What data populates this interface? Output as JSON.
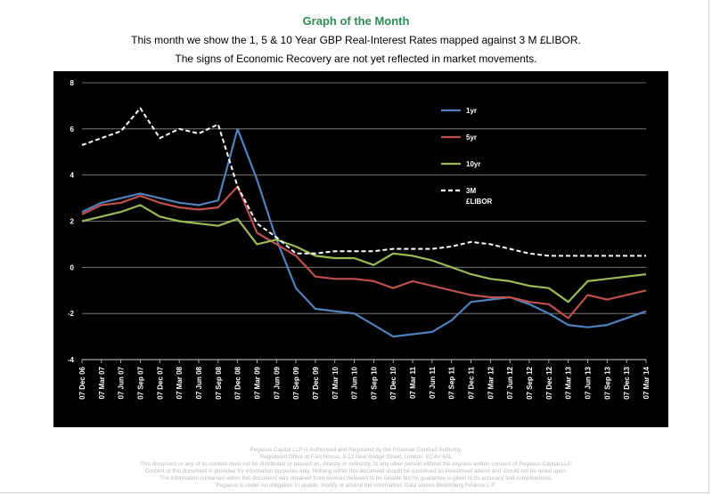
{
  "header": {
    "title": "Graph of the Month",
    "subtitle_1": "This month we show the 1, 5 & 10 Year GBP Real-Interest Rates mapped against 3 M £LIBOR.",
    "subtitle_2": "The signs of Economic Recovery are not yet reflected in market movements."
  },
  "footer": {
    "lines": [
      "Pegasus Capital LLP is Authorised and Regulated by the Financial Conduct Authority.",
      "Registered Office at Fast House, 9-12 New Bridge Street, London, EC4V 6AL",
      "This document or any of its content must not be distributed or passed on, directly or indirectly, to any other person without the express written consent of Pegasus Capital LLP.",
      "Content of this document is provided for information purposes only. Nothing within this document should be construed as investment advice and should not be relied upon.",
      "The information contained within this document was obtained from sources believed to be reliable but no guarantee is given to its accuracy and completeness.",
      "Pegasus is under no obligation to update, modify or amend the information. Data source Bloomberg Finance L.P."
    ]
  },
  "colors": {
    "background": "#000000",
    "grid": "#8c8c8c",
    "axis_text": "#ffffff",
    "s1yr": "#4f81bd",
    "s5yr": "#c0504d",
    "s10yr": "#9bbb59",
    "libor": "#ffffff"
  },
  "chart_data": {
    "type": "line",
    "title": "",
    "xlabel": "",
    "ylabel": "",
    "ylim": [
      -4,
      8
    ],
    "yticks": [
      -4,
      -2,
      0,
      2,
      4,
      6,
      8
    ],
    "grid": true,
    "legend_placement": "top-right",
    "x": [
      "07 Dec 06",
      "07 Mar 07",
      "07 Jun 07",
      "07 Sep 07",
      "07 Dec 07",
      "07 Mar 08",
      "07 Jun 08",
      "07 Sep 08",
      "07 Dec 08",
      "07 Mar 09",
      "07 Jun 09",
      "07 Sep 09",
      "07 Dec 09",
      "07 Mar 10",
      "07 Jun 10",
      "07 Sep 10",
      "07 Dec 10",
      "07 Mar 11",
      "07 Jun 11",
      "07 Sep 11",
      "07 Dec 11",
      "07 Mar 12",
      "07 Jun 12",
      "07 Sep 12",
      "07 Dec 12",
      "07 Mar 13",
      "07 Jun 13",
      "07 Sep 13",
      "07 Dec 13",
      "07 Mar 14"
    ],
    "series": [
      {
        "name": "1yr",
        "color_key": "s1yr",
        "dashed": false,
        "values": [
          2.4,
          2.8,
          3.0,
          3.2,
          3.0,
          2.8,
          2.7,
          2.9,
          6.0,
          3.8,
          1.2,
          -0.9,
          -1.8,
          -1.9,
          -2.0,
          -2.5,
          -3.0,
          -2.9,
          -2.8,
          -2.3,
          -1.5,
          -1.4,
          -1.3,
          -1.6,
          -2.0,
          -2.5,
          -2.6,
          -2.5,
          -2.2,
          -1.9
        ]
      },
      {
        "name": "5yr",
        "color_key": "s5yr",
        "dashed": false,
        "values": [
          2.3,
          2.7,
          2.8,
          3.1,
          2.8,
          2.6,
          2.5,
          2.6,
          3.5,
          1.5,
          1.0,
          0.5,
          -0.4,
          -0.5,
          -0.5,
          -0.6,
          -0.9,
          -0.6,
          -0.8,
          -1.0,
          -1.2,
          -1.3,
          -1.3,
          -1.5,
          -1.6,
          -2.2,
          -1.2,
          -1.4,
          -1.2,
          -1.0
        ]
      },
      {
        "name": "10yr",
        "color_key": "s10yr",
        "dashed": false,
        "values": [
          2.0,
          2.2,
          2.4,
          2.7,
          2.2,
          2.0,
          1.9,
          1.8,
          2.1,
          1.0,
          1.2,
          0.9,
          0.5,
          0.4,
          0.4,
          0.1,
          0.6,
          0.5,
          0.3,
          0.0,
          -0.3,
          -0.5,
          -0.6,
          -0.8,
          -0.9,
          -1.5,
          -0.6,
          -0.5,
          -0.4,
          -0.3
        ]
      },
      {
        "name": "3M\n£LIBOR",
        "color_key": "libor",
        "dashed": true,
        "values": [
          5.3,
          5.6,
          5.9,
          6.9,
          5.6,
          6.0,
          5.8,
          6.2,
          3.5,
          1.9,
          1.3,
          0.6,
          0.6,
          0.7,
          0.7,
          0.7,
          0.8,
          0.8,
          0.8,
          0.9,
          1.1,
          1.0,
          0.8,
          0.6,
          0.5,
          0.5,
          0.5,
          0.5,
          0.5,
          0.5
        ]
      }
    ]
  }
}
